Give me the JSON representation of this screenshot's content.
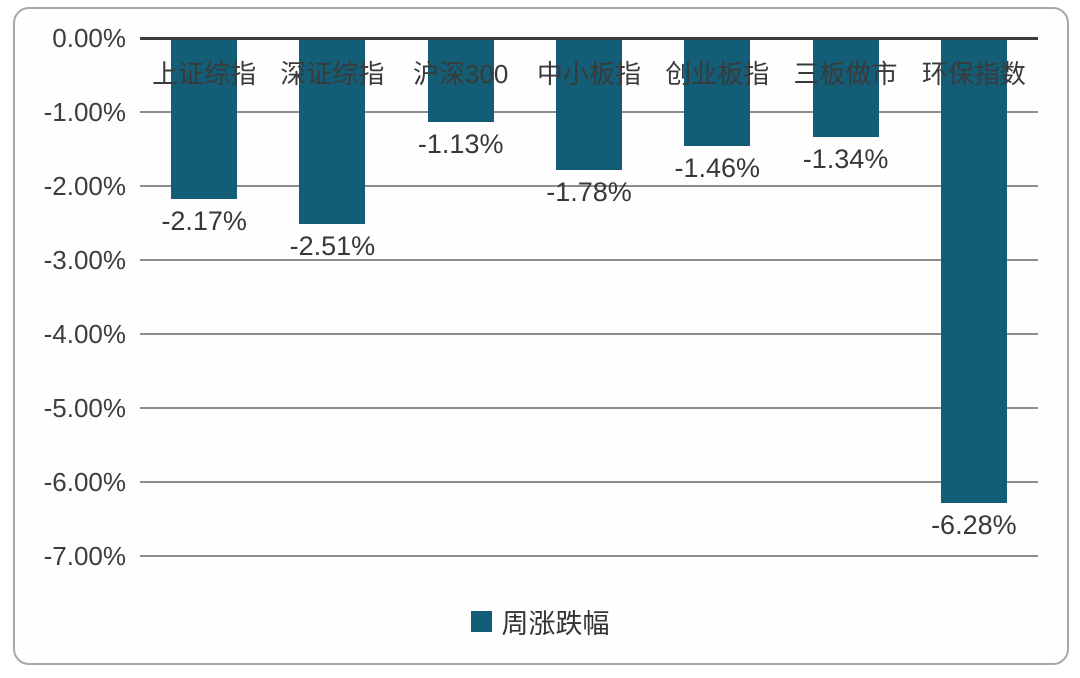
{
  "chart_data": {
    "type": "bar",
    "title": "",
    "categories": [
      "上证综指",
      "深证综指",
      "沪深300",
      "中小板指",
      "创业板指",
      "三板做市",
      "环保指数"
    ],
    "series": [
      {
        "name": "周涨跌幅",
        "values": [
          -2.17,
          -2.51,
          -1.13,
          -1.78,
          -1.46,
          -1.34,
          -6.28
        ]
      }
    ],
    "data_labels": [
      "-2.17%",
      "-2.51%",
      "-1.13%",
      "-1.78%",
      "-1.46%",
      "-1.34%",
      "-6.28%"
    ],
    "y_ticks": [
      "0.00%",
      "-1.00%",
      "-2.00%",
      "-3.00%",
      "-4.00%",
      "-5.00%",
      "-6.00%",
      "-7.00%"
    ],
    "ylim": [
      -7,
      0
    ],
    "grid": true,
    "bar_color": "#135E76",
    "legend": {
      "label": "周涨跌幅",
      "position": "bottom",
      "marker_color": "#135E76"
    }
  }
}
